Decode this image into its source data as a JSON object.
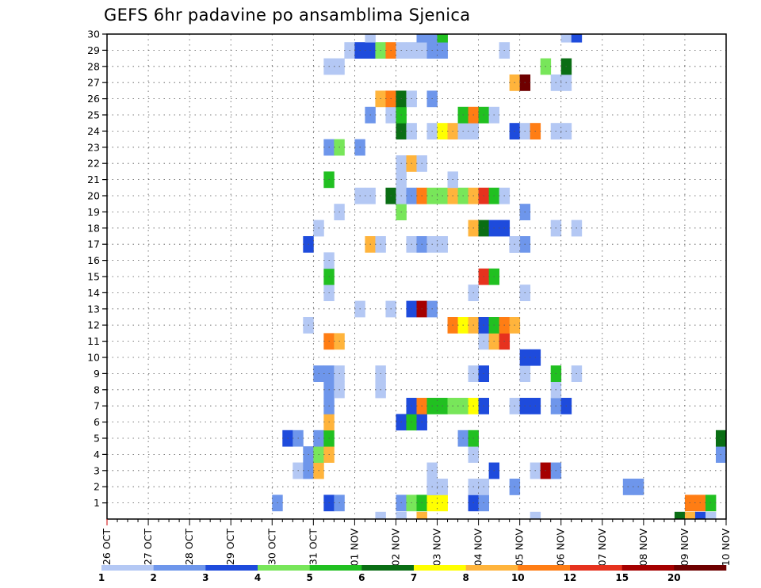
{
  "chart_data": {
    "type": "heatmap",
    "title": "GEFS 6hr padavine po ansamblima Sjenica",
    "xlabel": "",
    "ylabel": "",
    "x_ticks": [
      "26 OCT",
      "27 OCT",
      "28 OCT",
      "29 OCT",
      "30 OCT",
      "31 OCT",
      "01 NOV",
      "02 NOV",
      "03 NOV",
      "04 NOV",
      "05 NOV",
      "06 NOV",
      "07 NOV",
      "08 NOV",
      "09 NOV",
      "10 NOV"
    ],
    "y_ticks": [
      "1",
      "2",
      "3",
      "4",
      "5",
      "6",
      "7",
      "8",
      "9",
      "10",
      "11",
      "12",
      "13",
      "14",
      "15",
      "16",
      "17",
      "18",
      "19",
      "20",
      "21",
      "22",
      "23",
      "24",
      "25",
      "26",
      "27",
      "28",
      "29",
      "30"
    ],
    "x_range_steps": [
      0,
      60
    ],
    "steps_per_day": 4,
    "y_range": [
      0,
      30
    ],
    "grid": true,
    "colorbar": {
      "levels": [
        "1",
        "2",
        "3",
        "4",
        "5",
        "6",
        "7",
        "8",
        "10",
        "12",
        "15",
        "20"
      ],
      "colors": [
        "#b4c8f4",
        "#6e96eb",
        "#1e4bdc",
        "#78e65a",
        "#21c021",
        "#0a6e14",
        "#ffff00",
        "#ffb43c",
        "#ff7d14",
        "#e6321e",
        "#a50000",
        "#6e0000"
      ]
    },
    "cells": [
      [
        17,
        1,
        2
      ],
      [
        22,
        1,
        3
      ],
      [
        23,
        1,
        2
      ],
      [
        29,
        1,
        2
      ],
      [
        30,
        1,
        4
      ],
      [
        31,
        1,
        5
      ],
      [
        32,
        1,
        7
      ],
      [
        33,
        1,
        7
      ],
      [
        36,
        1,
        3
      ],
      [
        37,
        1,
        2
      ],
      [
        57,
        1,
        9
      ],
      [
        58,
        1,
        9
      ],
      [
        59,
        1,
        5
      ],
      [
        32,
        2,
        2
      ],
      [
        33,
        2,
        1
      ],
      [
        32,
        2,
        1
      ],
      [
        36,
        2,
        1
      ],
      [
        37,
        2,
        1
      ],
      [
        40,
        2,
        2
      ],
      [
        51,
        2,
        2
      ],
      [
        52,
        2,
        2
      ],
      [
        19,
        3,
        1
      ],
      [
        20,
        3,
        2
      ],
      [
        21,
        3,
        8
      ],
      [
        32,
        3,
        1
      ],
      [
        38,
        3,
        3
      ],
      [
        42,
        3,
        1
      ],
      [
        43,
        3,
        11
      ],
      [
        44,
        3,
        2
      ],
      [
        20,
        4,
        2
      ],
      [
        21,
        4,
        4
      ],
      [
        22,
        4,
        8
      ],
      [
        36,
        4,
        1
      ],
      [
        60,
        4,
        2
      ],
      [
        18,
        5,
        3
      ],
      [
        19,
        5,
        2
      ],
      [
        21,
        5,
        2
      ],
      [
        22,
        5,
        5
      ],
      [
        35,
        5,
        2
      ],
      [
        36,
        5,
        5
      ],
      [
        60,
        5,
        6
      ],
      [
        22,
        6,
        8
      ],
      [
        29,
        6,
        3
      ],
      [
        30,
        6,
        5
      ],
      [
        31,
        6,
        3
      ],
      [
        22,
        7,
        2
      ],
      [
        30,
        7,
        3
      ],
      [
        31,
        7,
        9
      ],
      [
        32,
        7,
        5
      ],
      [
        33,
        7,
        5
      ],
      [
        34,
        7,
        4
      ],
      [
        35,
        7,
        4
      ],
      [
        36,
        7,
        7
      ],
      [
        37,
        7,
        3
      ],
      [
        40,
        7,
        1
      ],
      [
        41,
        7,
        3
      ],
      [
        42,
        7,
        3
      ],
      [
        44,
        7,
        2
      ],
      [
        45,
        7,
        3
      ],
      [
        22,
        8,
        2
      ],
      [
        23,
        8,
        1
      ],
      [
        27,
        8,
        1
      ],
      [
        44,
        8,
        1
      ],
      [
        21,
        9,
        2
      ],
      [
        22,
        9,
        2
      ],
      [
        23,
        9,
        1
      ],
      [
        27,
        9,
        1
      ],
      [
        36,
        9,
        1
      ],
      [
        37,
        9,
        3
      ],
      [
        41,
        9,
        1
      ],
      [
        44,
        9,
        5
      ],
      [
        46,
        9,
        1
      ],
      [
        41,
        10,
        3
      ],
      [
        42,
        10,
        3
      ],
      [
        22,
        11,
        9
      ],
      [
        23,
        11,
        8
      ],
      [
        37,
        11,
        1
      ],
      [
        38,
        11,
        8
      ],
      [
        39,
        11,
        10
      ],
      [
        20,
        12,
        1
      ],
      [
        34,
        12,
        9
      ],
      [
        35,
        12,
        7
      ],
      [
        36,
        12,
        8
      ],
      [
        37,
        12,
        3
      ],
      [
        38,
        12,
        5
      ],
      [
        39,
        12,
        9
      ],
      [
        40,
        12,
        8
      ],
      [
        25,
        13,
        1
      ],
      [
        28,
        13,
        1
      ],
      [
        30,
        13,
        3
      ],
      [
        31,
        13,
        11
      ],
      [
        32,
        13,
        2
      ],
      [
        22,
        14,
        1
      ],
      [
        36,
        14,
        1
      ],
      [
        41,
        14,
        1
      ],
      [
        22,
        15,
        5
      ],
      [
        37,
        15,
        10
      ],
      [
        38,
        15,
        5
      ],
      [
        22,
        16,
        1
      ],
      [
        20,
        17,
        3
      ],
      [
        26,
        17,
        8
      ],
      [
        27,
        17,
        1
      ],
      [
        30,
        17,
        1
      ],
      [
        31,
        17,
        2
      ],
      [
        32,
        17,
        1
      ],
      [
        33,
        17,
        1
      ],
      [
        40,
        17,
        2
      ],
      [
        41,
        17,
        2
      ],
      [
        40,
        17,
        1
      ],
      [
        21,
        18,
        1
      ],
      [
        36,
        18,
        8
      ],
      [
        37,
        18,
        6
      ],
      [
        38,
        18,
        3
      ],
      [
        39,
        18,
        3
      ],
      [
        44,
        18,
        1
      ],
      [
        46,
        18,
        1
      ],
      [
        23,
        19,
        1
      ],
      [
        29,
        19,
        4
      ],
      [
        41,
        19,
        2
      ],
      [
        25,
        20,
        1
      ],
      [
        26,
        20,
        1
      ],
      [
        28,
        20,
        6
      ],
      [
        29,
        20,
        1
      ],
      [
        30,
        20,
        2
      ],
      [
        31,
        20,
        9
      ],
      [
        32,
        20,
        4
      ],
      [
        33,
        20,
        4
      ],
      [
        34,
        20,
        8
      ],
      [
        35,
        20,
        4
      ],
      [
        36,
        20,
        8
      ],
      [
        37,
        20,
        10
      ],
      [
        38,
        20,
        5
      ],
      [
        39,
        20,
        1
      ],
      [
        22,
        21,
        5
      ],
      [
        29,
        21,
        1
      ],
      [
        34,
        21,
        1
      ],
      [
        29,
        22,
        1
      ],
      [
        30,
        22,
        8
      ],
      [
        31,
        22,
        1
      ],
      [
        22,
        23,
        2
      ],
      [
        23,
        23,
        4
      ],
      [
        25,
        23,
        2
      ],
      [
        29,
        24,
        6
      ],
      [
        30,
        24,
        1
      ],
      [
        32,
        24,
        1
      ],
      [
        33,
        24,
        7
      ],
      [
        34,
        24,
        8
      ],
      [
        35,
        24,
        1
      ],
      [
        36,
        24,
        1
      ],
      [
        40,
        24,
        3
      ],
      [
        41,
        24,
        1
      ],
      [
        42,
        24,
        9
      ],
      [
        44,
        24,
        1
      ],
      [
        45,
        24,
        1
      ],
      [
        26,
        25,
        2
      ],
      [
        28,
        25,
        1
      ],
      [
        29,
        25,
        5
      ],
      [
        35,
        25,
        5
      ],
      [
        36,
        25,
        9
      ],
      [
        37,
        25,
        5
      ],
      [
        38,
        25,
        1
      ],
      [
        27,
        26,
        8
      ],
      [
        28,
        26,
        9
      ],
      [
        29,
        26,
        6
      ],
      [
        30,
        26,
        1
      ],
      [
        32,
        26,
        2
      ],
      [
        40,
        27,
        8
      ],
      [
        41,
        27,
        12
      ],
      [
        44,
        27,
        1
      ],
      [
        45,
        27,
        1
      ],
      [
        22,
        28,
        1
      ],
      [
        23,
        28,
        1
      ],
      [
        43,
        28,
        4
      ],
      [
        45,
        28,
        6
      ],
      [
        24,
        29,
        1
      ],
      [
        25,
        29,
        3
      ],
      [
        26,
        29,
        3
      ],
      [
        27,
        29,
        4
      ],
      [
        28,
        29,
        9
      ],
      [
        29,
        29,
        1
      ],
      [
        30,
        29,
        1
      ],
      [
        31,
        29,
        1
      ],
      [
        32,
        29,
        2
      ],
      [
        33,
        29,
        2
      ],
      [
        39,
        29,
        1
      ],
      [
        26,
        30,
        1
      ],
      [
        31,
        30,
        2
      ],
      [
        32,
        30,
        2
      ],
      [
        33,
        30,
        5
      ],
      [
        45,
        30,
        1
      ],
      [
        46,
        30,
        3
      ],
      [
        27,
        0,
        1
      ],
      [
        29,
        0,
        1
      ],
      [
        31,
        0,
        8
      ],
      [
        42,
        0,
        1
      ],
      [
        56,
        0,
        6
      ],
      [
        57,
        0,
        8
      ],
      [
        58,
        0,
        3
      ],
      [
        59,
        0,
        1
      ]
    ]
  }
}
